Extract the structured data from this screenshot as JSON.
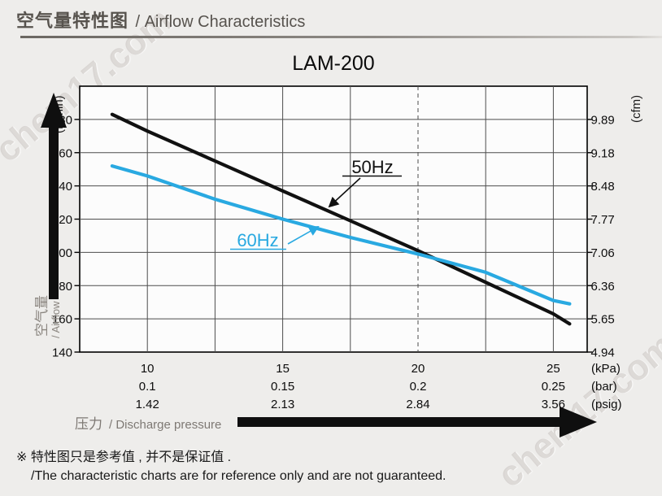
{
  "header": {
    "title_cn": "空气量特性图",
    "title_en": "/ Airflow Characteristics"
  },
  "watermark": {
    "text": "chem17.com"
  },
  "chart_data": {
    "type": "line",
    "title": "LAM-200",
    "x_axis": {
      "tick_values_kpa": [
        10,
        15,
        20,
        25
      ],
      "range_kpa": [
        7.5,
        26.2
      ],
      "gridline_step_kpa": 2.5,
      "dashed_gridline_kpa": 20,
      "label_rows": [
        {
          "unit": "(kPa)",
          "ticks": [
            "10",
            "15",
            "20",
            "25"
          ]
        },
        {
          "unit": "(bar)",
          "ticks": [
            "0.1",
            "0.15",
            "0.2",
            "0.25"
          ]
        },
        {
          "unit": "(psig)",
          "ticks": [
            "1.42",
            "2.13",
            "2.84",
            "3.56"
          ]
        }
      ],
      "axis_label_cn": "压力",
      "axis_label_en": "/ Discharge pressure"
    },
    "y_axis_left": {
      "unit": "(L/min)",
      "ticks": [
        280,
        260,
        240,
        220,
        200,
        180,
        160,
        140
      ],
      "range": [
        140,
        300
      ],
      "axis_label_cn": "空气量",
      "axis_label_en": "/ Airflow"
    },
    "y_axis_right": {
      "unit": "(cfm)",
      "ticks": [
        "9.89",
        "9.18",
        "8.48",
        "7.77",
        "7.06",
        "6.36",
        "5.65",
        "4.94"
      ]
    },
    "grid": true,
    "legend_position": "in-plot-annotations",
    "series": [
      {
        "name": "50Hz",
        "color": "#111111",
        "points_kpa_lmin": [
          [
            8.7,
            283
          ],
          [
            10,
            273
          ],
          [
            12.5,
            255
          ],
          [
            15,
            237
          ],
          [
            17.5,
            219
          ],
          [
            20,
            201
          ],
          [
            22.5,
            182
          ],
          [
            25,
            163
          ],
          [
            25.6,
            157
          ]
        ]
      },
      {
        "name": "60Hz",
        "color": "#29a9e1",
        "points_kpa_lmin": [
          [
            8.7,
            252
          ],
          [
            10,
            246
          ],
          [
            12.5,
            232
          ],
          [
            15,
            220
          ],
          [
            17.5,
            209
          ],
          [
            20,
            199
          ],
          [
            22.5,
            188
          ],
          [
            25,
            171
          ],
          [
            25.6,
            169
          ]
        ]
      }
    ]
  },
  "footnote": {
    "line1": "※ 特性图只是参考值 , 并不是保证值 .",
    "line2": "/The characteristic charts are for reference only and are not guaranteed."
  }
}
